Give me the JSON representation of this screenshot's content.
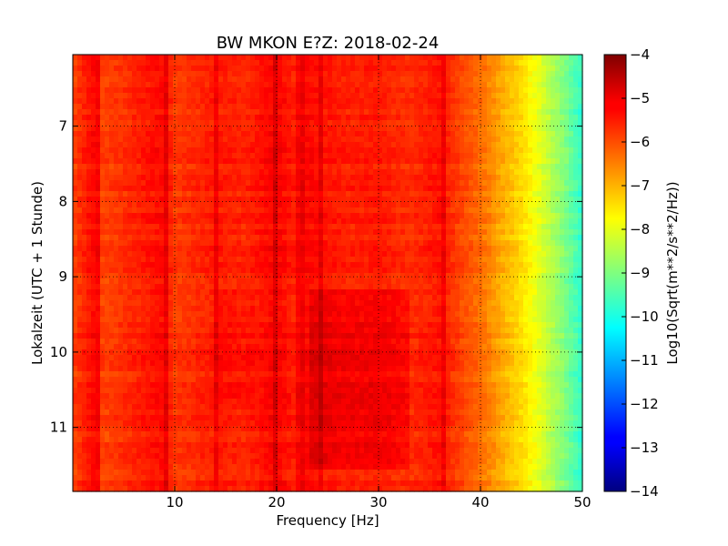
{
  "chart_data": {
    "type": "heatmap",
    "title": "BW MKON E?Z: 2018-02-24",
    "xlabel": "Frequency [Hz]",
    "ylabel": "Lokalzeit (UTC + 1 Stunde)",
    "xlim": [
      0,
      50
    ],
    "ylim": [
      6.05,
      11.85
    ],
    "y_inverted": true,
    "grid": true,
    "x_ticks": [
      10,
      20,
      30,
      40,
      50
    ],
    "y_ticks": [
      7,
      8,
      9,
      10,
      11
    ],
    "colorbar": {
      "label": "Log10(Sqrt(m**2/s**2/Hz))",
      "range": [
        -14,
        -4
      ],
      "ticks": [
        -4,
        -5,
        -6,
        -7,
        -8,
        -9,
        -10,
        -11,
        -12,
        -13,
        -14
      ],
      "colormap": "jet"
    },
    "frequency_profile_hz": [
      0,
      2,
      3,
      5,
      9,
      10,
      14,
      17,
      20,
      22,
      23,
      25,
      27,
      30,
      33,
      36,
      38,
      40,
      42,
      44,
      46,
      48,
      50
    ],
    "frequency_profile_log10": [
      -5.9,
      -5.3,
      -5.9,
      -5.7,
      -5.3,
      -5.8,
      -5.5,
      -5.6,
      -5.2,
      -5.6,
      -5.3,
      -5.45,
      -5.55,
      -5.5,
      -5.7,
      -5.4,
      -5.9,
      -6.3,
      -6.9,
      -7.4,
      -8.1,
      -8.9,
      -9.8
    ],
    "frequency_band_hz": [
      0,
      50
    ],
    "time_band": [
      6.05,
      11.85
    ],
    "value_range_log10": [
      -9.8,
      -4.9
    ],
    "dominant_value_log10": -5.6,
    "narrow_peaks_hz": [
      2.3,
      9,
      14,
      20,
      22.3,
      24.5,
      36.5
    ]
  }
}
